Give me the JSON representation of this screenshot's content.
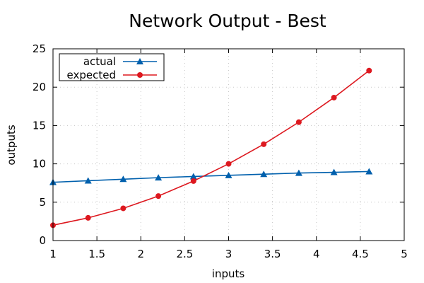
{
  "chart_data": {
    "type": "line",
    "title": "Network Output - Best",
    "xlabel": "inputs",
    "ylabel": "outputs",
    "xlim": [
      1,
      5
    ],
    "ylim": [
      0,
      25
    ],
    "x_ticks": [
      "1",
      "1.5",
      "2",
      "2.5",
      "3",
      "3.5",
      "4",
      "4.5",
      "5"
    ],
    "y_ticks": [
      "0",
      "5",
      "10",
      "15",
      "20",
      "25"
    ],
    "grid": true,
    "legend_position": "top-left",
    "x": [
      1.0,
      1.4,
      1.8,
      2.2,
      2.6,
      3.0,
      3.4,
      3.8,
      4.2,
      4.6
    ],
    "series": [
      {
        "name": "actual",
        "color": "#0060ad",
        "marker": "triangle",
        "values": [
          7.6,
          7.8,
          8.0,
          8.2,
          8.35,
          8.5,
          8.65,
          8.8,
          8.9,
          9.0
        ]
      },
      {
        "name": "expected",
        "color": "#dd181f",
        "marker": "circle",
        "values": [
          2.0,
          2.96,
          4.2,
          5.8,
          7.76,
          10.0,
          12.56,
          15.44,
          18.64,
          22.16
        ]
      }
    ]
  }
}
